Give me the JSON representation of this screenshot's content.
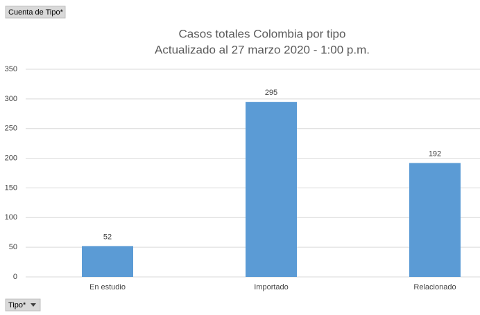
{
  "value_field_button": "Cuenta de Tipo*",
  "axis_field_button": "Tipo*",
  "chart_data": {
    "type": "bar",
    "title": "Casos totales Colombia por tipo",
    "subtitle": "Actualizado al 27 marzo 2020 - 1:00 p.m.",
    "categories": [
      "En estudio",
      "Importado",
      "Relacionado"
    ],
    "values": [
      52,
      295,
      192
    ],
    "color": "#5b9bd5",
    "ylim": [
      0,
      350
    ],
    "yticks": [
      0,
      50,
      100,
      150,
      200,
      250,
      300,
      350
    ],
    "grid": true
  }
}
